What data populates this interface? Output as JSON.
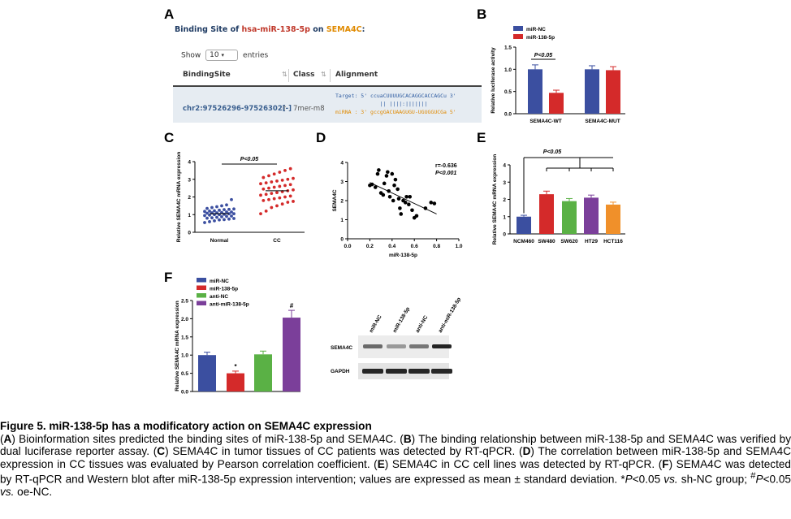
{
  "panel_letters": [
    "A",
    "B",
    "C",
    "D",
    "E",
    "F"
  ],
  "panel_a": {
    "title_prefix": "Binding Site of ",
    "title_mirna": "hsa-miR-138-5p",
    "title_mid": " on ",
    "title_gene": "SEMA4C",
    "title_suffix": ":",
    "show_label": "Show",
    "show_value": "10",
    "entries_label": "entries",
    "columns": [
      "BindingSite",
      "Class",
      "Alignment"
    ],
    "row": {
      "binding_site": "chr2:97526296-97526302[-]",
      "class": "7mer-m8",
      "target_line": "Target: 5' ccuaCUUUUGCACAGGCACCAGCu 3'",
      "pair_line": "              || ||||:|||||||",
      "mirna_line": "miRNA : 3' gccgGACUAAGUGU-UGUGGUCGa 5'"
    }
  },
  "chart_data": [
    {
      "panel": "B",
      "type": "bar",
      "categories": [
        "SEMA4C-WT",
        "SEMA4C-MUT"
      ],
      "series": [
        {
          "name": "miR-NC",
          "values": [
            1.0,
            1.0
          ],
          "errors": [
            0.1,
            0.08
          ]
        },
        {
          "name": "miR-138-5p",
          "values": [
            0.47,
            0.98
          ],
          "errors": [
            0.06,
            0.08
          ]
        }
      ],
      "ylabel": "Relative luciferase activity",
      "yticks": [
        "0.0",
        "0.5",
        "1.0",
        "1.5"
      ],
      "ylim": [
        0,
        1.5
      ],
      "annotation": "P<0.05",
      "colors": [
        "#3b4fa0",
        "#d42a2a"
      ],
      "legend": "top-left"
    },
    {
      "panel": "C",
      "type": "scatter",
      "categories": [
        "Normal",
        "CC"
      ],
      "normal_values": [
        0.55,
        0.6,
        0.65,
        0.7,
        0.72,
        0.75,
        0.78,
        0.8,
        0.82,
        0.85,
        0.88,
        0.9,
        0.92,
        0.95,
        0.97,
        1.0,
        1.0,
        1.02,
        1.05,
        1.05,
        1.08,
        1.1,
        1.1,
        1.12,
        1.15,
        1.15,
        1.18,
        1.2,
        1.22,
        1.25,
        1.28,
        1.3,
        1.32,
        1.35,
        1.4,
        1.45,
        1.5,
        1.55,
        1.85
      ],
      "cc_values": [
        1.05,
        1.2,
        1.4,
        1.5,
        1.6,
        1.7,
        1.75,
        1.8,
        1.85,
        1.9,
        1.95,
        2.0,
        2.05,
        2.1,
        2.15,
        2.2,
        2.25,
        2.3,
        2.35,
        2.4,
        2.45,
        2.5,
        2.55,
        2.6,
        2.65,
        2.7,
        2.75,
        2.8,
        2.85,
        2.9,
        2.95,
        3.0,
        3.05,
        3.1,
        3.2,
        3.3,
        3.4,
        3.5,
        3.6
      ],
      "ylabel": "Relative SEMA4C mRNA expression",
      "yticks": [
        "0",
        "1",
        "2",
        "3",
        "4"
      ],
      "ylim": [
        0,
        4
      ],
      "annotation": "P<0.05",
      "colors": [
        "#3b4fa0",
        "#d42a2a"
      ]
    },
    {
      "panel": "D",
      "type": "scatter",
      "points": [
        [
          0.2,
          2.8
        ],
        [
          0.22,
          2.85
        ],
        [
          0.25,
          2.7
        ],
        [
          0.27,
          3.4
        ],
        [
          0.28,
          3.6
        ],
        [
          0.3,
          2.4
        ],
        [
          0.32,
          2.3
        ],
        [
          0.33,
          2.9
        ],
        [
          0.35,
          3.3
        ],
        [
          0.36,
          3.5
        ],
        [
          0.37,
          2.5
        ],
        [
          0.38,
          2.2
        ],
        [
          0.4,
          3.4
        ],
        [
          0.41,
          2.0
        ],
        [
          0.42,
          2.8
        ],
        [
          0.43,
          3.1
        ],
        [
          0.45,
          2.6
        ],
        [
          0.46,
          2.1
        ],
        [
          0.47,
          1.6
        ],
        [
          0.48,
          1.3
        ],
        [
          0.5,
          2.0
        ],
        [
          0.52,
          1.9
        ],
        [
          0.53,
          2.2
        ],
        [
          0.55,
          1.8
        ],
        [
          0.56,
          2.2
        ],
        [
          0.58,
          1.5
        ],
        [
          0.6,
          1.1
        ],
        [
          0.62,
          1.2
        ],
        [
          0.7,
          1.6
        ],
        [
          0.75,
          1.9
        ],
        [
          0.78,
          1.85
        ]
      ],
      "regression": [
        [
          0.2,
          2.95
        ],
        [
          0.8,
          1.3
        ]
      ],
      "xlabel": "miR-138-5p",
      "ylabel": "SEMA4C",
      "xticks": [
        "0.0",
        "0.2",
        "0.4",
        "0.6",
        "0.8",
        "1.0"
      ],
      "yticks": [
        "0",
        "1",
        "2",
        "3",
        "4"
      ],
      "xlim": [
        0,
        1.0
      ],
      "ylim": [
        0,
        4
      ],
      "annotations": [
        "r=-0.636",
        "P<0.001"
      ]
    },
    {
      "panel": "E",
      "type": "bar",
      "categories": [
        "NCM460",
        "SW480",
        "SW620",
        "HT29",
        "HCT116"
      ],
      "values": [
        1.0,
        2.3,
        1.9,
        2.1,
        1.7
      ],
      "errors": [
        0.08,
        0.18,
        0.15,
        0.15,
        0.14
      ],
      "colors": [
        "#3b4fa0",
        "#d42a2a",
        "#5ab145",
        "#7b3f9a",
        "#f0902a"
      ],
      "ylabel": "Relative SEMA4C mRNA expression",
      "yticks": [
        "0",
        "1",
        "2",
        "3",
        "4"
      ],
      "ylim": [
        0,
        4
      ],
      "annotation": "P<0.05"
    },
    {
      "panel": "F",
      "type": "bar",
      "categories": [
        "miR-NC",
        "miR-138-5p",
        "anti-NC",
        "anti-miR-138-5p"
      ],
      "values": [
        1.0,
        0.5,
        1.02,
        2.03
      ],
      "errors": [
        0.08,
        0.06,
        0.09,
        0.2
      ],
      "marks": [
        "",
        "*",
        "",
        "#"
      ],
      "colors": [
        "#3b4fa0",
        "#d42a2a",
        "#5ab145",
        "#7b3f9a"
      ],
      "ylabel": "Relative SEMA4C mRNA expression",
      "yticks": [
        "0.0",
        "0.5",
        "1.0",
        "1.5",
        "2.0",
        "2.5"
      ],
      "ylim": [
        0,
        2.5
      ],
      "legend": "top-left"
    }
  ],
  "blot": {
    "lanes": [
      "miR-NC",
      "miR-138-5p",
      "anti-NC",
      "anti-miR-138-5p"
    ],
    "rows": [
      "SEMA4C",
      "GAPDH"
    ]
  },
  "caption": {
    "title": "Figure 5. miR-138-5p has a modificatory action on SEMA4C expression",
    "body_html": "(<b>A</b>) Bioinformation sites predicted the binding sites of miR-138-5p and SEMA4C. (<b>B</b>) The binding relationship between miR-138-5p and SEMA4C was verified by dual luciferase reporter assay. (<b>C</b>) SEMA4C in tumor tissues of CC patients was detected by RT-qPCR. (<b>D</b>) The correlation between miR-138-5p and SEMA4C expression in CC tissues was evaluated by Pearson correlation coefficient. (<b>E</b>) SEMA4C in CC cell lines was detected by RT-qPCR. (<b>F</b>) SEMA4C was detected by RT-qPCR and Western blot after miR-138-5p expression intervention; values are expressed as mean ± standard deviation. *<i>P</i>&lt;0.05 <i>vs.</i> sh-NC group; <sup>#</sup><i>P</i>&lt;0.05 <i>vs.</i> oe-NC."
  }
}
